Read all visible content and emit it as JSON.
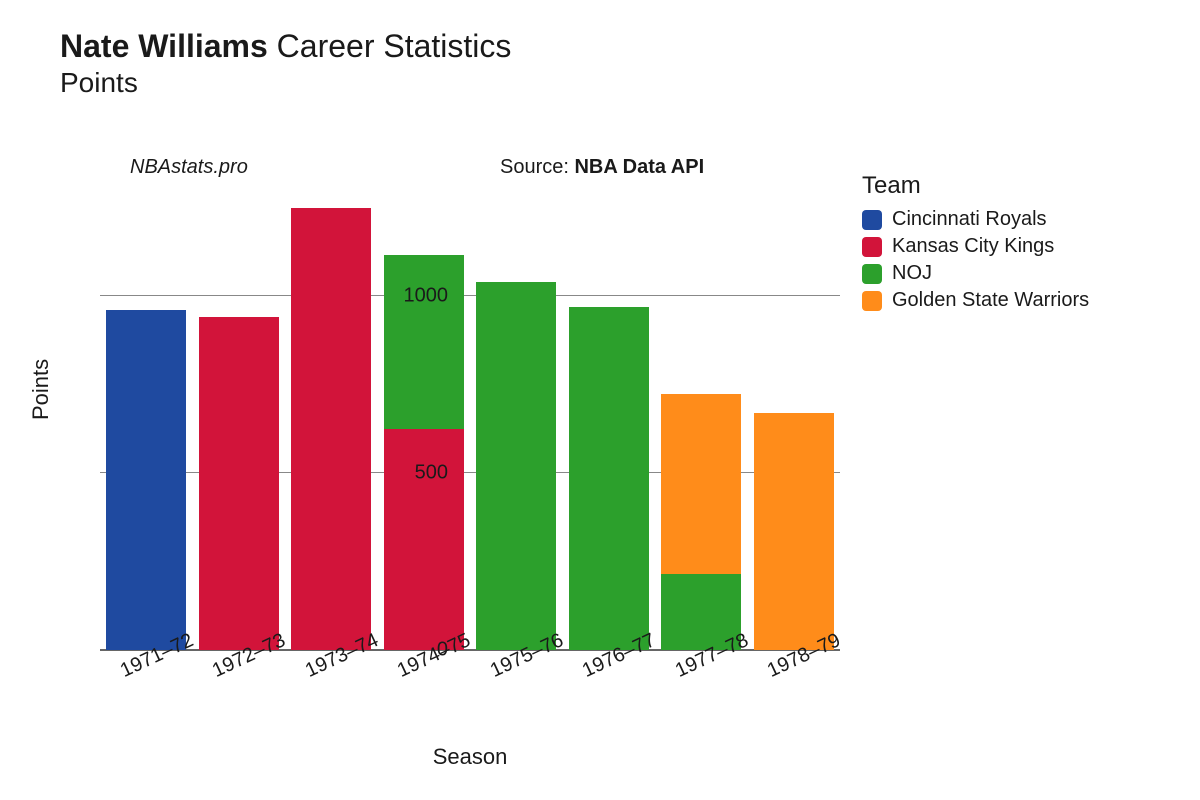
{
  "title": {
    "player_name": "Nate Williams",
    "suffix": "Career Statistics",
    "metric": "Points",
    "title_fontsize": 32,
    "subtitle_fontsize": 28
  },
  "watermark": "NBAstats.pro",
  "source": {
    "label": "Source: ",
    "name": "NBA Data API"
  },
  "chart": {
    "type": "stacked-bar",
    "x_label": "Season",
    "y_label": "Points",
    "background_color": "#ffffff",
    "grid_color": "#888888",
    "text_color": "#1a1a1a",
    "label_fontsize": 22,
    "tick_fontsize": 20,
    "ylim": [
      0,
      1300
    ],
    "ytick_step": 500,
    "yticks": [
      0,
      500,
      1000
    ],
    "bar_width_ratio": 0.86,
    "seasons": [
      "1971–72",
      "1972–73",
      "1973–74",
      "1974–75",
      "1975–76",
      "1976–77",
      "1977–78",
      "1978–79"
    ],
    "teams": [
      {
        "id": "cin",
        "label": "Cincinnati Royals",
        "color": "#1f4aa0"
      },
      {
        "id": "kck",
        "label": "Kansas City Kings",
        "color": "#d2143a"
      },
      {
        "id": "noj",
        "label": "NOJ",
        "color": "#2ca02c"
      },
      {
        "id": "gsw",
        "label": "Golden State Warriors",
        "color": "#ff8c1a"
      }
    ],
    "data": {
      "1971–72": [
        {
          "team": "cin",
          "value": 960
        }
      ],
      "1972–73": [
        {
          "team": "kck",
          "value": 940
        }
      ],
      "1973–74": [
        {
          "team": "kck",
          "value": 1250
        }
      ],
      "1974–75": [
        {
          "team": "kck",
          "value": 625
        },
        {
          "team": "noj",
          "value": 495
        }
      ],
      "1975–76": [
        {
          "team": "noj",
          "value": 1040
        }
      ],
      "1976–77": [
        {
          "team": "noj",
          "value": 970
        }
      ],
      "1977–78": [
        {
          "team": "noj",
          "value": 215
        },
        {
          "team": "gsw",
          "value": 510
        }
      ],
      "1978–79": [
        {
          "team": "gsw",
          "value": 670
        }
      ]
    }
  },
  "legend": {
    "title": "Team",
    "title_fontsize": 24,
    "item_fontsize": 20
  }
}
